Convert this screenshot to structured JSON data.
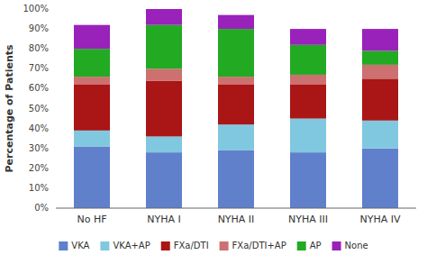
{
  "chart_data": {
    "type": "bar",
    "stacked": true,
    "ylabel": "Percentage of Patients",
    "categories": [
      "No HF",
      "NYHA I",
      "NYHA II",
      "NYHA III",
      "NYHA IV"
    ],
    "series": [
      {
        "name": "VKA",
        "color": "#6080cc",
        "values": [
          31,
          28,
          29,
          28,
          30
        ]
      },
      {
        "name": "VKA+AP",
        "color": "#80c8e0",
        "values": [
          8,
          8,
          13,
          17,
          14
        ]
      },
      {
        "name": "FXa/DTI",
        "color": "#aa1515",
        "values": [
          23,
          28,
          20,
          17,
          21
        ]
      },
      {
        "name": "FXa/DTI+AP",
        "color": "#cc7070",
        "values": [
          4,
          6,
          4,
          5,
          7
        ]
      },
      {
        "name": "AP",
        "color": "#22aa22",
        "values": [
          14,
          22,
          24,
          15,
          7
        ]
      },
      {
        "name": "None",
        "color": "#9922bb",
        "values": [
          12,
          8,
          7,
          8,
          11
        ]
      }
    ],
    "ylim": [
      0,
      100
    ],
    "yticks": [
      {
        "value": 0,
        "label": "0%"
      },
      {
        "value": 10,
        "label": "10%"
      },
      {
        "value": 20,
        "label": "20%"
      },
      {
        "value": 30,
        "label": "30%"
      },
      {
        "value": 40,
        "label": "40%"
      },
      {
        "value": 50,
        "label": "50%"
      },
      {
        "value": 60,
        "label": "60%"
      },
      {
        "value": 70,
        "label": "70%"
      },
      {
        "value": 80,
        "label": "80%"
      },
      {
        "value": 90,
        "label": "90%"
      },
      {
        "value": 100,
        "label": "100%"
      }
    ],
    "grid": false,
    "legend": "bottom"
  }
}
